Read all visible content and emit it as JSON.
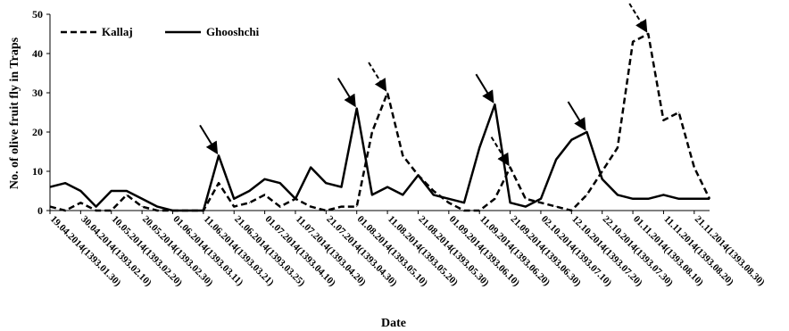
{
  "chart_data": {
    "type": "line",
    "xlabel": "Date",
    "ylabel": "No. of olive fruit fly in Traps",
    "ylim": [
      0,
      50
    ],
    "y_ticks": [
      0,
      10,
      20,
      30,
      40,
      50
    ],
    "legend_position": "top-left",
    "grid": false,
    "categories": [
      "19.04.2014(1393.01.30)",
      "30.04.2014(1393.02.10)",
      "10.05.2014(1393.02.20)",
      "20.05.2014(1393.02.30)",
      "01.06.2014(1393.03.11)",
      "11.06.2014(1393.03.21)",
      "21.06.2014(1393.03.25)",
      "01.07.2014(1393.04.10)",
      "11.07.2014(1393.04.20)",
      "21.07.2014(1393.04.30)",
      "01.08.2014(1393.05.10)",
      "11.08.2014(1393.05.20)",
      "21.08.2014(1393.05.30)",
      "01.09.2014(1393.06.10)",
      "11.09.2014(1393.06.20)",
      "21.09.2014(1393.06.30)",
      "02.10.2014(1393.07.10)",
      "12.10.2014(1393.07.20)",
      "22.10.2014(1393.07.30)",
      "01.11.2014(1393.08.10)",
      "11.11.2014(1393.08.20)",
      "21.11.2014(1393.08.30)"
    ],
    "x": [
      0,
      1,
      2,
      3,
      4,
      5,
      6,
      7,
      8,
      9,
      10,
      11,
      12,
      13,
      14,
      15,
      16,
      17,
      18,
      19,
      20,
      21,
      22,
      23,
      24,
      25,
      26,
      27,
      28,
      29,
      30,
      31,
      32,
      33,
      34,
      35,
      36,
      37,
      38,
      39,
      40,
      41,
      42,
      43
    ],
    "series": [
      {
        "name": "Kallaj",
        "style": "dashed",
        "color": "#000000",
        "values": [
          1,
          0,
          2,
          0,
          0,
          4,
          1,
          0,
          0,
          0,
          0,
          7,
          1,
          2,
          4,
          1,
          3,
          1,
          0,
          1,
          1,
          20,
          30,
          14,
          9,
          5,
          2,
          0,
          0,
          3,
          11,
          3,
          2,
          1,
          0,
          4,
          10,
          16,
          43,
          45,
          23,
          25,
          11,
          3
        ]
      },
      {
        "name": "Ghooshchi",
        "style": "solid",
        "color": "#000000",
        "values": [
          6,
          7,
          5,
          1,
          5,
          5,
          3,
          1,
          0,
          0,
          0,
          14,
          3,
          5,
          8,
          7,
          3,
          11,
          7,
          6,
          26,
          4,
          6,
          4,
          9,
          4,
          3,
          2,
          16,
          27,
          2,
          1,
          3,
          13,
          18,
          20,
          8,
          4,
          3,
          3,
          4,
          3,
          3,
          3
        ]
      }
    ],
    "annotations": [
      {
        "type": "arrow",
        "series": "Ghooshchi",
        "x": 11
      },
      {
        "type": "arrow",
        "series": "Ghooshchi",
        "x": 20
      },
      {
        "type": "arrow",
        "series": "Kallaj",
        "x": 22
      },
      {
        "type": "arrow",
        "series": "Ghooshchi",
        "x": 29
      },
      {
        "type": "arrow",
        "series": "Kallaj",
        "x": 30
      },
      {
        "type": "arrow",
        "series": "Ghooshchi",
        "x": 35
      },
      {
        "type": "arrow",
        "series": "Kallaj",
        "x": 39
      }
    ]
  }
}
